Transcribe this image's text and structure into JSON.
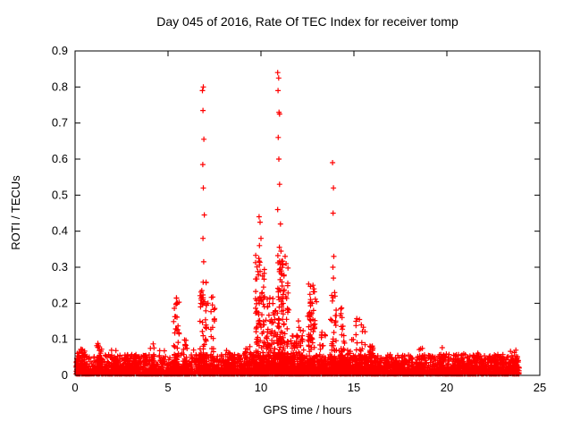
{
  "window": {
    "background": "#ffffff"
  },
  "chart_data": {
    "type": "scatter",
    "title": "Day 045 of 2016, Rate Of TEC Index for receiver tomp",
    "xlabel": "GPS time / hours",
    "ylabel": "ROTI / TECUs",
    "xlim": [
      0,
      25
    ],
    "ylim": [
      0,
      0.9
    ],
    "xticks": [
      0,
      5,
      10,
      15,
      20,
      25
    ],
    "xtick_labels": [
      "0",
      "5",
      "10",
      "15",
      "20",
      "25"
    ],
    "yticks": [
      0,
      0.1,
      0.2,
      0.3,
      0.4,
      0.5,
      0.6,
      0.7,
      0.8,
      0.9
    ],
    "ytick_labels": [
      "0",
      "0.1",
      "0.2",
      "0.3",
      "0.4",
      "0.5",
      "0.6",
      "0.7",
      "0.8",
      "0.9"
    ],
    "marker": "+",
    "color": "#ff0000",
    "grid": false,
    "legend": "none",
    "data_extent_hours": [
      0.05,
      23.9
    ],
    "baseline": {
      "count": 3600,
      "y_min": 0.004,
      "y_max": 0.058,
      "description": "dense red noise band between 0 and ~0.06 TECUs across the whole day"
    },
    "clusters": [
      {
        "t": 0.3,
        "w": 0.25,
        "max": 0.075,
        "n": 40
      },
      {
        "t": 1.3,
        "w": 0.15,
        "max": 0.09,
        "n": 30
      },
      {
        "t": 2.1,
        "w": 0.15,
        "max": 0.07,
        "n": 25
      },
      {
        "t": 3.0,
        "w": 0.3,
        "max": 0.06,
        "n": 30
      },
      {
        "t": 4.15,
        "w": 0.12,
        "max": 0.09,
        "n": 18
      },
      {
        "t": 5.45,
        "w": 0.15,
        "max": 0.22,
        "n": 45
      },
      {
        "t": 5.9,
        "w": 0.15,
        "max": 0.1,
        "n": 25
      },
      {
        "t": 6.9,
        "w": 0.18,
        "max": 0.26,
        "n": 70
      },
      {
        "t": 7.4,
        "w": 0.12,
        "max": 0.22,
        "n": 30
      },
      {
        "t": 8.3,
        "w": 0.3,
        "max": 0.07,
        "n": 30
      },
      {
        "t": 9.3,
        "w": 0.2,
        "max": 0.09,
        "n": 30
      },
      {
        "t": 9.95,
        "w": 0.25,
        "max": 0.34,
        "n": 120
      },
      {
        "t": 10.45,
        "w": 0.2,
        "max": 0.22,
        "n": 70
      },
      {
        "t": 10.8,
        "w": 0.15,
        "max": 0.18,
        "n": 50
      },
      {
        "t": 11.05,
        "w": 0.15,
        "max": 0.36,
        "n": 90
      },
      {
        "t": 11.35,
        "w": 0.15,
        "max": 0.3,
        "n": 50
      },
      {
        "t": 11.8,
        "w": 0.2,
        "max": 0.12,
        "n": 40
      },
      {
        "t": 12.15,
        "w": 0.15,
        "max": 0.17,
        "n": 40
      },
      {
        "t": 12.75,
        "w": 0.25,
        "max": 0.26,
        "n": 80
      },
      {
        "t": 13.3,
        "w": 0.2,
        "max": 0.12,
        "n": 40
      },
      {
        "t": 13.9,
        "w": 0.15,
        "max": 0.23,
        "n": 50
      },
      {
        "t": 14.35,
        "w": 0.15,
        "max": 0.2,
        "n": 35
      },
      {
        "t": 14.8,
        "w": 0.2,
        "max": 0.1,
        "n": 30
      },
      {
        "t": 15.35,
        "w": 0.25,
        "max": 0.16,
        "n": 50
      },
      {
        "t": 16.0,
        "w": 0.2,
        "max": 0.09,
        "n": 30
      },
      {
        "t": 17.5,
        "w": 0.3,
        "max": 0.06,
        "n": 25
      },
      {
        "t": 18.55,
        "w": 0.15,
        "max": 0.08,
        "n": 20
      },
      {
        "t": 19.8,
        "w": 0.3,
        "max": 0.06,
        "n": 25
      },
      {
        "t": 21.3,
        "w": 0.4,
        "max": 0.065,
        "n": 35
      },
      {
        "t": 22.6,
        "w": 0.3,
        "max": 0.055,
        "n": 25
      },
      {
        "t": 23.6,
        "w": 0.25,
        "max": 0.07,
        "n": 30
      }
    ],
    "peak_points": [
      [
        6.85,
        0.79
      ],
      [
        6.9,
        0.8
      ],
      [
        6.88,
        0.735
      ],
      [
        6.93,
        0.655
      ],
      [
        6.87,
        0.585
      ],
      [
        6.9,
        0.52
      ],
      [
        6.95,
        0.445
      ],
      [
        6.88,
        0.38
      ],
      [
        6.92,
        0.315
      ],
      [
        7.15,
        0.2
      ],
      [
        6.75,
        0.19
      ],
      [
        9.9,
        0.44
      ],
      [
        9.95,
        0.425
      ],
      [
        10.0,
        0.38
      ],
      [
        9.92,
        0.36
      ],
      [
        10.9,
        0.84
      ],
      [
        10.95,
        0.825
      ],
      [
        10.92,
        0.79
      ],
      [
        10.97,
        0.73
      ],
      [
        11.0,
        0.725
      ],
      [
        10.93,
        0.66
      ],
      [
        10.96,
        0.6
      ],
      [
        11.0,
        0.53
      ],
      [
        10.9,
        0.46
      ],
      [
        11.05,
        0.42
      ],
      [
        11.3,
        0.33
      ],
      [
        11.35,
        0.31
      ],
      [
        12.8,
        0.25
      ],
      [
        12.85,
        0.24
      ],
      [
        13.85,
        0.59
      ],
      [
        13.9,
        0.52
      ],
      [
        13.88,
        0.45
      ],
      [
        13.92,
        0.33
      ],
      [
        13.87,
        0.3
      ],
      [
        13.9,
        0.27
      ],
      [
        15.3,
        0.155
      ],
      [
        15.4,
        0.14
      ],
      [
        5.45,
        0.215
      ],
      [
        5.5,
        0.2
      ]
    ]
  }
}
